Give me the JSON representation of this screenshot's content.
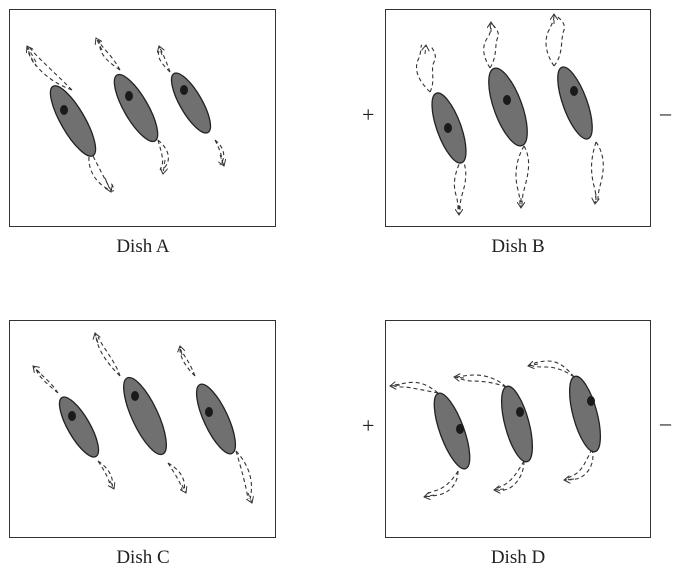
{
  "dishes": [
    {
      "caption": "Dish A"
    },
    {
      "caption": "Dish B",
      "left_sign": "+",
      "right_sign": "–"
    },
    {
      "caption": "Dish C"
    },
    {
      "caption": "Dish D",
      "left_sign": "+",
      "right_sign": "–"
    }
  ],
  "colors": {
    "cell_fill": "#707070",
    "cell_stroke": "#222222",
    "nucleus": "#1a1a1a",
    "path": "#333333"
  }
}
